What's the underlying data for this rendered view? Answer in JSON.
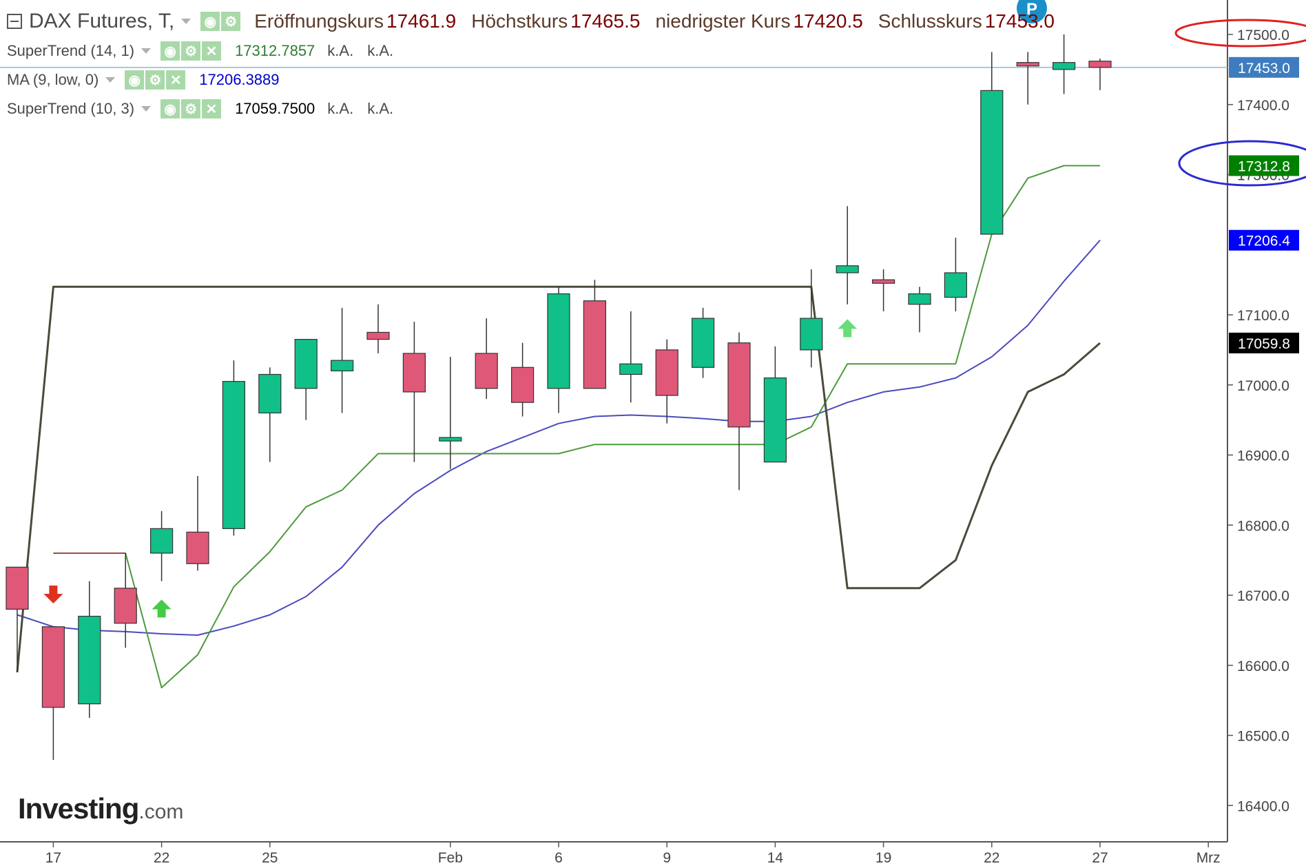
{
  "header": {
    "title": "DAX Futures, T,",
    "ohlc": [
      {
        "label": "Eröffnungskurs",
        "value": "17461.9"
      },
      {
        "label": "Höchstkurs",
        "value": "17465.5"
      },
      {
        "label": "niedrigster Kurs",
        "value": "17420.5"
      },
      {
        "label": "Schlusskurs",
        "value": "17453.0"
      }
    ]
  },
  "indicators": [
    {
      "name": "SuperTrend (14, 1)",
      "value": "17312.7857",
      "na1": "k.A.",
      "na2": "k.A.",
      "color": "#2e7d32",
      "icons": [
        "eye-icon",
        "gear-icon",
        "close-icon"
      ]
    },
    {
      "name": "MA (9, low, 0)",
      "value": "17206.3889",
      "color": "#0000cc",
      "icons": [
        "eye-icon",
        "gear-icon",
        "close-icon"
      ]
    },
    {
      "name": "SuperTrend (10, 3)",
      "value": "17059.7500",
      "na1": "k.A.",
      "na2": "k.A.",
      "color": "#000000",
      "icons": [
        "eye-icon",
        "gear-icon",
        "close-icon"
      ]
    }
  ],
  "logo": {
    "brand": "Investing",
    "suffix": ".com"
  },
  "pin_label": "P",
  "chart_data": {
    "type": "candlestick",
    "ylim": [
      16350,
      17550
    ],
    "y_ticks": [
      "17500.0",
      "17400.0",
      "17300.0",
      "17100.0",
      "17000.0",
      "16900.0",
      "16800.0",
      "16700.0",
      "16600.0",
      "16500.0",
      "16400.0"
    ],
    "y_tick_values": [
      17500,
      17400,
      17300,
      17100,
      17000,
      16900,
      16800,
      16700,
      16600,
      16500,
      16400
    ],
    "x_ticks": [
      {
        "label": "17",
        "index": 1
      },
      {
        "label": "22",
        "index": 4
      },
      {
        "label": "25",
        "index": 7
      },
      {
        "label": "Feb",
        "index": 12
      },
      {
        "label": "6",
        "index": 15
      },
      {
        "label": "9",
        "index": 18
      },
      {
        "label": "14",
        "index": 21
      },
      {
        "label": "19",
        "index": 24
      },
      {
        "label": "22",
        "index": 27
      },
      {
        "label": "27",
        "index": 30
      },
      {
        "label": "Mrz",
        "index": 33
      }
    ],
    "candles": [
      {
        "o": 16740,
        "h": 16740,
        "l": 16590,
        "c": 16680
      },
      {
        "o": 16655,
        "h": 16655,
        "l": 16465,
        "c": 16540
      },
      {
        "o": 16545,
        "h": 16720,
        "l": 16525,
        "c": 16670
      },
      {
        "o": 16710,
        "h": 16760,
        "l": 16625,
        "c": 16660
      },
      {
        "o": 16760,
        "h": 16820,
        "l": 16720,
        "c": 16795
      },
      {
        "o": 16790,
        "h": 16870,
        "l": 16735,
        "c": 16745
      },
      {
        "o": 16795,
        "h": 17035,
        "l": 16785,
        "c": 17005
      },
      {
        "o": 16960,
        "h": 17025,
        "l": 16890,
        "c": 17015
      },
      {
        "o": 16995,
        "h": 17065,
        "l": 16950,
        "c": 17065
      },
      {
        "o": 17020,
        "h": 17110,
        "l": 16960,
        "c": 17035
      },
      {
        "o": 17075,
        "h": 17115,
        "l": 17045,
        "c": 17065
      },
      {
        "o": 17045,
        "h": 17090,
        "l": 16890,
        "c": 16990
      },
      {
        "o": 16920,
        "h": 17040,
        "l": 16880,
        "c": 16925
      },
      {
        "o": 17045,
        "h": 17095,
        "l": 16980,
        "c": 16995
      },
      {
        "o": 17025,
        "h": 17060,
        "l": 16955,
        "c": 16975
      },
      {
        "o": 16995,
        "h": 17140,
        "l": 16960,
        "c": 17130
      },
      {
        "o": 17120,
        "h": 17150,
        "l": 17005,
        "c": 16995
      },
      {
        "o": 17015,
        "h": 17105,
        "l": 16975,
        "c": 17030
      },
      {
        "o": 17050,
        "h": 17065,
        "l": 16945,
        "c": 16985
      },
      {
        "o": 17025,
        "h": 17110,
        "l": 17010,
        "c": 17095
      },
      {
        "o": 17060,
        "h": 17075,
        "l": 16850,
        "c": 16940
      },
      {
        "o": 16890,
        "h": 17055,
        "l": 16890,
        "c": 17010
      },
      {
        "o": 17050,
        "h": 17165,
        "l": 17025,
        "c": 17095
      },
      {
        "o": 17160,
        "h": 17255,
        "l": 17115,
        "c": 17170
      },
      {
        "o": 17150,
        "h": 17165,
        "l": 17105,
        "c": 17145
      },
      {
        "o": 17115,
        "h": 17140,
        "l": 17075,
        "c": 17130
      },
      {
        "o": 17125,
        "h": 17210,
        "l": 17105,
        "c": 17160
      },
      {
        "o": 17215,
        "h": 17475,
        "l": 17215,
        "c": 17420
      },
      {
        "o": 17460,
        "h": 17475,
        "l": 17400,
        "c": 17455
      },
      {
        "o": 17450,
        "h": 17500,
        "l": 17415,
        "c": 17460
      },
      {
        "o": 17461.9,
        "h": 17465.5,
        "l": 17420.5,
        "c": 17453.0
      }
    ],
    "series": [
      {
        "name": "MA (9, low, 0)",
        "color": "#4a4abf",
        "points": [
          [
            0,
            16672
          ],
          [
            1,
            16655
          ],
          [
            2,
            16650
          ],
          [
            3,
            16648
          ],
          [
            4,
            16645
          ],
          [
            5,
            16643
          ],
          [
            6,
            16656
          ],
          [
            7,
            16672
          ],
          [
            8,
            16698
          ],
          [
            9,
            16740
          ],
          [
            10,
            16800
          ],
          [
            11,
            16845
          ],
          [
            12,
            16878
          ],
          [
            13,
            16905
          ],
          [
            14,
            16925
          ],
          [
            15,
            16945
          ],
          [
            16,
            16955
          ],
          [
            17,
            16957
          ],
          [
            18,
            16955
          ],
          [
            19,
            16952
          ],
          [
            20,
            16948
          ],
          [
            21,
            16948
          ],
          [
            22,
            16955
          ],
          [
            23,
            16975
          ],
          [
            24,
            16990
          ],
          [
            25,
            16997
          ],
          [
            26,
            17010
          ],
          [
            27,
            17040
          ],
          [
            28,
            17085
          ],
          [
            29,
            17148
          ],
          [
            30,
            17206.4
          ]
        ]
      },
      {
        "name": "SuperTrend (14, 1)",
        "color": "#4c9a3c",
        "points": [
          [
            2,
            16760
          ],
          [
            3,
            16760
          ],
          [
            3,
            16760
          ],
          [
            4,
            16568
          ],
          [
            5,
            16615
          ],
          [
            6,
            16712
          ],
          [
            7,
            16762
          ],
          [
            8,
            16826
          ],
          [
            9,
            16850
          ],
          [
            10,
            16902
          ],
          [
            11,
            16902
          ],
          [
            12,
            16902
          ],
          [
            13,
            16902
          ],
          [
            14,
            16902
          ],
          [
            15,
            16902
          ],
          [
            16,
            16915
          ],
          [
            17,
            16915
          ],
          [
            18,
            16915
          ],
          [
            19,
            16915
          ],
          [
            20,
            16915
          ],
          [
            21,
            16915
          ],
          [
            22,
            16940
          ],
          [
            23,
            17030
          ],
          [
            24,
            17030
          ],
          [
            25,
            17030
          ],
          [
            26,
            17030
          ],
          [
            27,
            17215
          ],
          [
            28,
            17295
          ],
          [
            29,
            17312.8
          ],
          [
            30,
            17312.8
          ]
        ]
      },
      {
        "name": "SuperTrend (14, 1) upper",
        "color": "#a04848",
        "points": [
          [
            1,
            16760
          ],
          [
            2,
            16760
          ],
          [
            3,
            16760
          ]
        ]
      },
      {
        "name": "SuperTrend (10, 3)",
        "color": "#4a4a3c",
        "points": [
          [
            0,
            16590
          ],
          [
            1,
            17140
          ],
          [
            2,
            17140
          ],
          [
            3,
            17140
          ],
          [
            4,
            17140
          ],
          [
            5,
            17140
          ],
          [
            6,
            17140
          ],
          [
            7,
            17140
          ],
          [
            8,
            17140
          ],
          [
            9,
            17140
          ],
          [
            10,
            17140
          ],
          [
            11,
            17140
          ],
          [
            12,
            17140
          ],
          [
            13,
            17140
          ],
          [
            14,
            17140
          ],
          [
            15,
            17140
          ],
          [
            16,
            17140
          ],
          [
            17,
            17140
          ],
          [
            18,
            17140
          ],
          [
            19,
            17140
          ],
          [
            20,
            17140
          ],
          [
            21,
            17140
          ],
          [
            22,
            17140
          ],
          [
            23,
            16710
          ],
          [
            24,
            16710
          ],
          [
            25,
            16710
          ],
          [
            26,
            16750
          ],
          [
            27,
            16885
          ],
          [
            28,
            16990
          ],
          [
            29,
            17015
          ],
          [
            30,
            17059.8
          ]
        ]
      }
    ],
    "signals": [
      {
        "index": 1,
        "type": "sell",
        "value": 16700,
        "color": "#e03020"
      },
      {
        "index": 4,
        "type": "buy",
        "value": 16680,
        "color": "#44cc44"
      },
      {
        "index": 23,
        "type": "buy",
        "value": 17080,
        "color": "#66dd77"
      }
    ],
    "price_tags": [
      {
        "text": "17453.0",
        "value": 17453.0,
        "bg": "#3d7dbf",
        "fg": "#ffffff"
      },
      {
        "text": "17312.8",
        "value": 17312.8,
        "bg": "#008000",
        "fg": "#ffffff"
      },
      {
        "text": "17206.4",
        "value": 17206.4,
        "bg": "#0000ff",
        "fg": "#ffffff"
      },
      {
        "text": "17059.8",
        "value": 17059.8,
        "bg": "#000000",
        "fg": "#ffffff"
      }
    ],
    "last_price": 17453.0,
    "colors": {
      "up": "#10c088",
      "down": "#e05878",
      "border": "#333333"
    }
  }
}
